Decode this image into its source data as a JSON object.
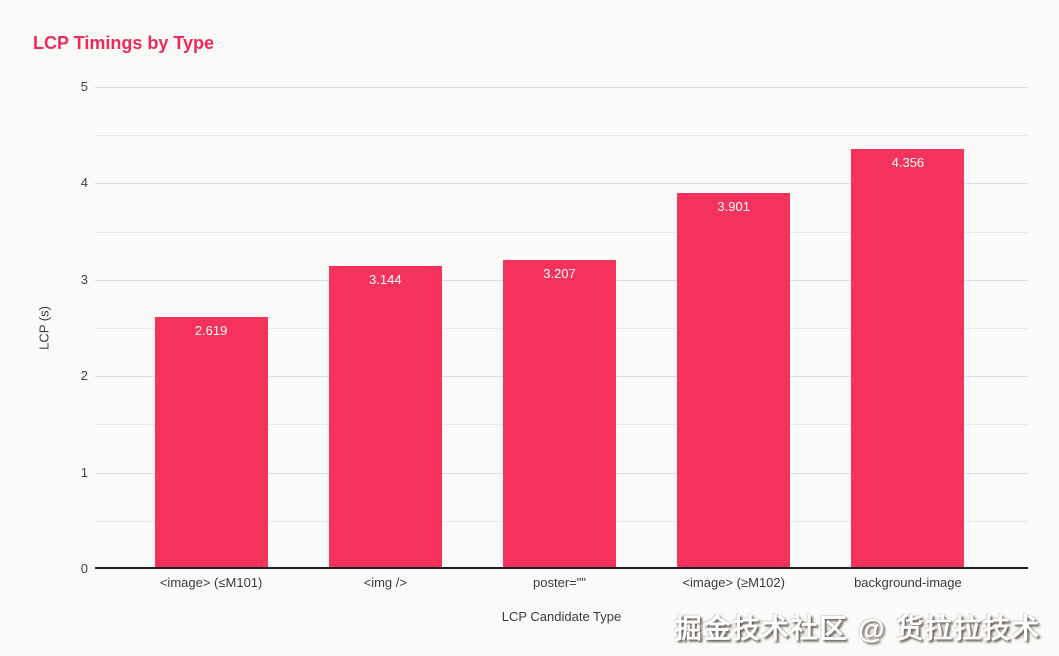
{
  "chart_data": {
    "type": "bar",
    "title": "LCP Timings by Type",
    "xlabel": "LCP Candidate Type",
    "ylabel": "LCP (s)",
    "categories": [
      "<image> (≤M101)",
      "<img />",
      "poster=\"\"",
      "<image> (≥M102)",
      "background-image"
    ],
    "values": [
      2.619,
      3.144,
      3.207,
      3.901,
      4.356
    ],
    "value_labels": [
      "2.619",
      "3.144",
      "3.207",
      "3.901",
      "4.356"
    ],
    "ylim": [
      0,
      5
    ],
    "ytick_step": 1,
    "minor_grid_step": 0.5,
    "grid": true,
    "legend_position": "none",
    "bar_color": "#f4325c",
    "value_label_color": "#ffffff",
    "title_color": "#ef2a5a"
  },
  "watermark": {
    "text": "掘金技术社区 @ 货拉拉技术"
  }
}
